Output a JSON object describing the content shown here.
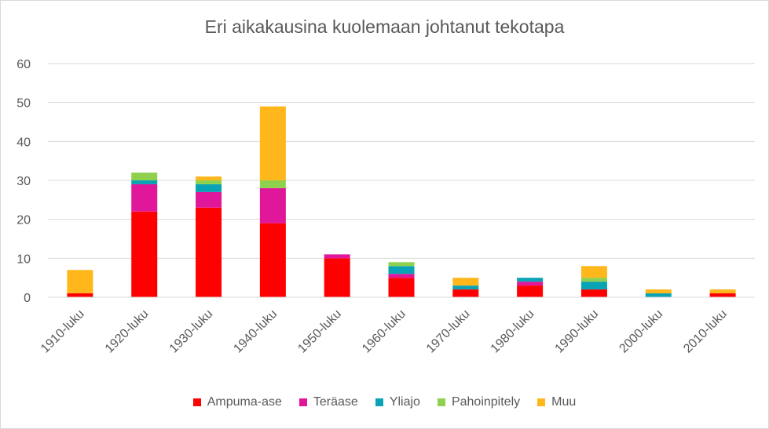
{
  "chart_data": {
    "type": "bar",
    "stacked": true,
    "title": "Eri aikakausina kuolemaan johtanut tekotapa",
    "xlabel": "",
    "ylabel": "",
    "ylim": [
      0,
      60
    ],
    "yticks": [
      0,
      10,
      20,
      30,
      40,
      50,
      60
    ],
    "grid": true,
    "legend_position": "bottom",
    "categories": [
      "1910-luku",
      "1920-luku",
      "1930-luku",
      "1940-luku",
      "1950-luku",
      "1960-luku",
      "1970-luku",
      "1980-luku",
      "1990-luku",
      "2000-luku",
      "2010-luku"
    ],
    "series": [
      {
        "name": "Ampuma-ase",
        "color": "#ff0000",
        "values": [
          1,
          22,
          23,
          19,
          10,
          5,
          2,
          3,
          2,
          0,
          1
        ]
      },
      {
        "name": "Teräase",
        "color": "#e0179a",
        "values": [
          0,
          7,
          4,
          9,
          1,
          1,
          0,
          1,
          0,
          0,
          0
        ]
      },
      {
        "name": "Yliajo",
        "color": "#0aa3b5",
        "values": [
          0,
          1,
          2,
          0,
          0,
          2,
          1,
          1,
          2,
          1,
          0
        ]
      },
      {
        "name": "Pahoinpitely",
        "color": "#8fd14f",
        "values": [
          0,
          2,
          1,
          2,
          0,
          1,
          0,
          0,
          1,
          0,
          0
        ]
      },
      {
        "name": "Muu",
        "color": "#ffb71c",
        "values": [
          6,
          0,
          1,
          19,
          0,
          0,
          2,
          0,
          3,
          1,
          1
        ]
      }
    ]
  }
}
